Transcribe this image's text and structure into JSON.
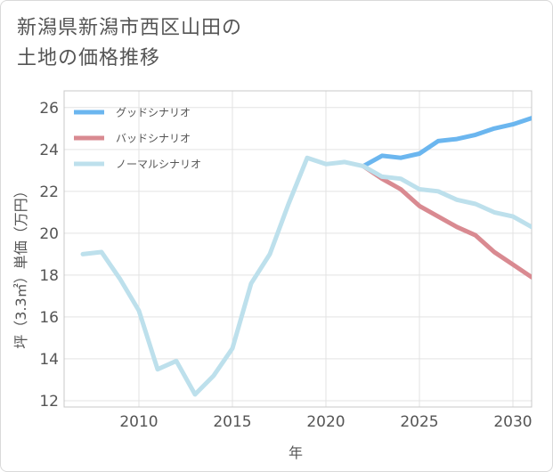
{
  "title_lines": [
    "新潟県新潟市西区山田の",
    "土地の価格推移"
  ],
  "chart_data": {
    "type": "line",
    "xlabel": "年",
    "ylabel": "坪（3.3㎡）単価（万円）",
    "xlim": [
      2006,
      2031
    ],
    "ylim": [
      11.7,
      26.8
    ],
    "x_ticks": [
      2010,
      2015,
      2020,
      2025,
      2030
    ],
    "y_ticks": [
      12,
      14,
      16,
      18,
      20,
      22,
      24,
      26
    ],
    "grid": true,
    "legend_position": "top-left",
    "series": [
      {
        "name": "グッドシナリオ",
        "color": "#6bb6ef",
        "x": [
          2022,
          2023,
          2024,
          2025,
          2026,
          2027,
          2028,
          2029,
          2030,
          2031
        ],
        "y": [
          23.2,
          23.7,
          23.6,
          23.8,
          24.4,
          24.5,
          24.7,
          25.0,
          25.2,
          25.5
        ]
      },
      {
        "name": "バッドシナリオ",
        "color": "#d98a91",
        "x": [
          2022,
          2023,
          2024,
          2025,
          2026,
          2027,
          2028,
          2029,
          2030,
          2031
        ],
        "y": [
          23.2,
          22.6,
          22.1,
          21.3,
          20.8,
          20.3,
          19.9,
          19.1,
          18.5,
          17.9
        ]
      },
      {
        "name": "ノーマルシナリオ",
        "color": "#bde0ec",
        "x": [
          2007,
          2008,
          2009,
          2010,
          2011,
          2012,
          2013,
          2014,
          2015,
          2016,
          2017,
          2018,
          2019,
          2020,
          2021,
          2022,
          2023,
          2024,
          2025,
          2026,
          2027,
          2028,
          2029,
          2030,
          2031
        ],
        "y": [
          19.0,
          19.1,
          17.8,
          16.3,
          13.5,
          13.9,
          12.3,
          13.2,
          14.5,
          17.6,
          19.0,
          21.4,
          23.6,
          23.3,
          23.4,
          23.2,
          22.7,
          22.6,
          22.1,
          22.0,
          21.6,
          21.4,
          21.0,
          20.8,
          20.3
        ]
      }
    ]
  }
}
